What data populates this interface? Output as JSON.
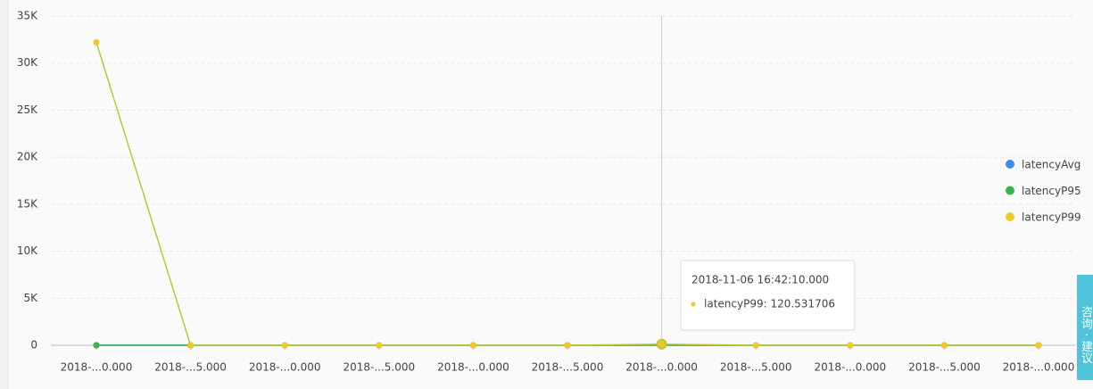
{
  "chart_data": {
    "type": "line",
    "categories": [
      "2018-...0.000",
      "2018-...5.000",
      "2018-...0.000",
      "2018-...5.000",
      "2018-...0.000",
      "2018-...5.000",
      "2018-...0.000",
      "2018-...5.000",
      "2018-...0.000",
      "2018-...5.000",
      "2018-...0.000"
    ],
    "series": [
      {
        "name": "latencyAvg",
        "color": "#3a8ee6",
        "values": [
          0,
          0,
          0,
          0,
          0,
          0,
          0,
          0,
          0,
          0,
          0
        ]
      },
      {
        "name": "latencyP95",
        "color": "#3bb54a",
        "values": [
          0,
          0,
          0,
          0,
          0,
          0,
          0,
          0,
          0,
          0,
          0
        ]
      },
      {
        "name": "latencyP99",
        "color": "#f2c72b",
        "values": [
          32200,
          0,
          0,
          0,
          0,
          0,
          120.531706,
          0,
          0,
          0,
          0
        ]
      }
    ],
    "ylim": [
      0,
      35000
    ],
    "yticks": [
      0,
      {
        "value": 5000,
        "label": "5K"
      },
      {
        "value": 10000,
        "label": "10K"
      },
      {
        "value": 15000,
        "label": "15K"
      },
      {
        "value": 20000,
        "label": "20K"
      },
      {
        "value": 25000,
        "label": "25K"
      },
      {
        "value": 30000,
        "label": "30K"
      },
      {
        "value": 35000,
        "label": "35K"
      }
    ],
    "grid": true,
    "legend": "right",
    "tooltip": {
      "title": "2018-11-06 16:42:10.000",
      "text": "latencyP99: 120.531706"
    }
  },
  "feedback": "咨询 · 建议"
}
